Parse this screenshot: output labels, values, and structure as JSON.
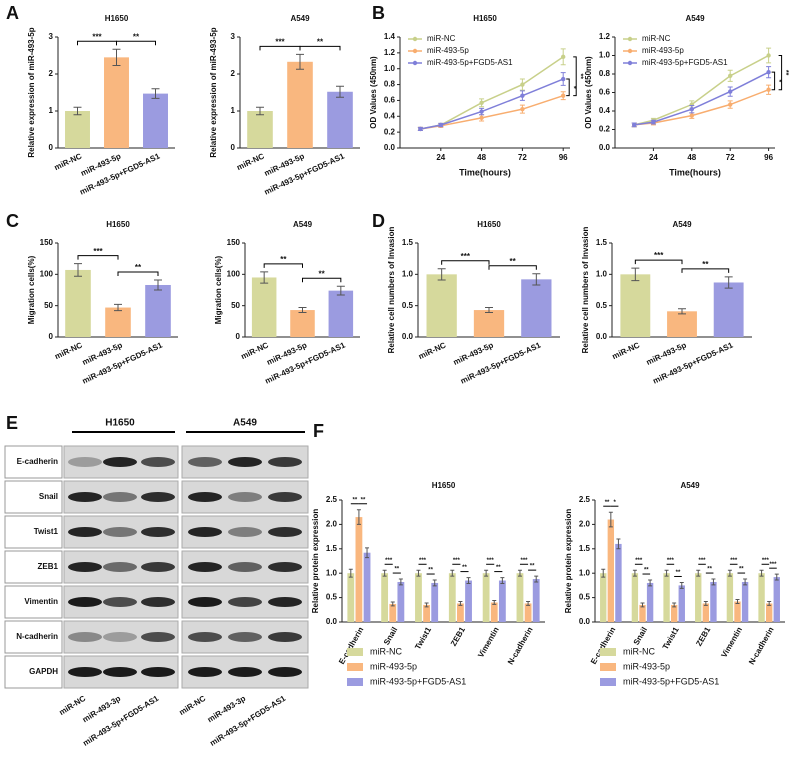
{
  "panels": [
    "A",
    "B",
    "C",
    "D",
    "E",
    "F"
  ],
  "blot": {
    "groups": [
      "H1650",
      "A549"
    ],
    "proteins": [
      "E-cadherin",
      "Snail",
      "Twist1",
      "ZEB1",
      "Vimentin",
      "N-cadherin",
      "GAPDH"
    ],
    "lanes": [
      "miR-NC",
      "miR-493-3p",
      "miR-493-5p+FGD5-AS1",
      "miR-NC",
      "miR-493-3p",
      "miR-493-5p+FGD5-AS1"
    ]
  },
  "chart_data": [
    {
      "type": "bar",
      "title": "H1650",
      "ylabel": "Relative expression of miR-493-5p",
      "categories": [
        "miR-NC",
        "miR-493-5p",
        "miR-493-5p+FGD5-AS1"
      ],
      "values": [
        1.0,
        2.45,
        1.47
      ],
      "errors": [
        0.1,
        0.22,
        0.13
      ],
      "colors": [
        "#d6d99c",
        "#f9b77f",
        "#9b9be0"
      ],
      "ylim": [
        0,
        3
      ],
      "yticks": [
        0,
        1,
        2,
        3
      ],
      "significance": [
        "***",
        "**"
      ]
    },
    {
      "type": "bar",
      "title": "A549",
      "ylabel": "Relative expression of miR-493-5p",
      "categories": [
        "miR-NC",
        "miR-493-5p",
        "miR-493-5p+FGD5-AS1"
      ],
      "values": [
        1.0,
        2.33,
        1.52
      ],
      "errors": [
        0.1,
        0.2,
        0.15
      ],
      "colors": [
        "#d6d99c",
        "#f9b77f",
        "#9b9be0"
      ],
      "ylim": [
        0,
        3
      ],
      "yticks": [
        0,
        1,
        2,
        3
      ],
      "significance": [
        "***",
        "**"
      ]
    },
    {
      "type": "line",
      "title": "H1650",
      "xlabel": "Time(hours)",
      "ylabel": "OD Values (450nm)",
      "x": [
        12,
        24,
        48,
        72,
        96
      ],
      "xlim": [
        0,
        100
      ],
      "xticks": [
        24,
        48,
        72,
        96
      ],
      "ylim": [
        0,
        1.4
      ],
      "yticks": [
        {
          "value": 0,
          "label": "0.0"
        },
        0.2,
        0.4,
        0.6,
        0.8,
        {
          "value": 1,
          "label": "1.0"
        },
        1.2,
        1.4
      ],
      "legend": "upper left",
      "significance": [
        "*",
        "**"
      ],
      "series": [
        {
          "name": "miR-NC",
          "color": "#c8d08a",
          "values": [
            0.24,
            0.29,
            0.57,
            0.8,
            1.15
          ],
          "errors": [
            0.02,
            0.02,
            0.05,
            0.07,
            0.1
          ]
        },
        {
          "name": "miR-493-5p",
          "color": "#f8ad6f",
          "values": [
            0.24,
            0.28,
            0.38,
            0.49,
            0.66
          ],
          "errors": [
            0.02,
            0.02,
            0.04,
            0.05,
            0.05
          ]
        },
        {
          "name": "miR-493-5p+FGD5-AS1",
          "color": "#7f7fd9",
          "values": [
            0.24,
            0.29,
            0.46,
            0.66,
            0.87
          ],
          "errors": [
            0.02,
            0.02,
            0.04,
            0.06,
            0.08
          ]
        }
      ]
    },
    {
      "type": "line",
      "title": "A549",
      "xlabel": "Time(hours)",
      "ylabel": "OD Values (450nm)",
      "x": [
        12,
        24,
        48,
        72,
        96
      ],
      "xlim": [
        0,
        100
      ],
      "xticks": [
        24,
        48,
        72,
        96
      ],
      "ylim": [
        0,
        1.2
      ],
      "yticks": [
        {
          "value": 0,
          "label": "0.0"
        },
        0.2,
        0.4,
        0.6,
        0.8,
        {
          "value": 1,
          "label": "1.0"
        },
        1.2
      ],
      "legend": "upper left",
      "significance": [
        "*",
        "**"
      ],
      "series": [
        {
          "name": "miR-NC",
          "color": "#c8d08a",
          "values": [
            0.25,
            0.3,
            0.47,
            0.78,
            1.0
          ],
          "errors": [
            0.02,
            0.02,
            0.04,
            0.06,
            0.08
          ]
        },
        {
          "name": "miR-493-5p",
          "color": "#f8ad6f",
          "values": [
            0.25,
            0.27,
            0.35,
            0.47,
            0.63
          ],
          "errors": [
            0.02,
            0.02,
            0.03,
            0.04,
            0.05
          ]
        },
        {
          "name": "miR-493-5p+FGD5-AS1",
          "color": "#7f7fd9",
          "values": [
            0.25,
            0.28,
            0.42,
            0.61,
            0.82
          ],
          "errors": [
            0.02,
            0.02,
            0.04,
            0.05,
            0.06
          ]
        }
      ]
    },
    {
      "type": "bar",
      "title": "H1650",
      "ylabel": "Migration cells(%)",
      "categories": [
        "miR-NC",
        "miR-493-5p",
        "miR-493-5p+FGD5-AS1"
      ],
      "values": [
        107,
        47,
        83
      ],
      "errors": [
        10,
        5,
        8
      ],
      "colors": [
        "#d6d99c",
        "#f9b77f",
        "#9b9be0"
      ],
      "ylim": [
        0,
        150
      ],
      "yticks": [
        0,
        50,
        100,
        150
      ],
      "significance": [
        "***",
        "**"
      ]
    },
    {
      "type": "bar",
      "title": "A549",
      "ylabel": "Migration cells(%)",
      "categories": [
        "miR-NC",
        "miR-493-5p",
        "miR-493-5p+FGD5-AS1"
      ],
      "values": [
        95,
        43,
        74
      ],
      "errors": [
        9,
        4,
        7
      ],
      "colors": [
        "#d6d99c",
        "#f9b77f",
        "#9b9be0"
      ],
      "ylim": [
        0,
        150
      ],
      "yticks": [
        0,
        50,
        100,
        150
      ],
      "significance": [
        "**",
        "**"
      ]
    },
    {
      "type": "bar",
      "title": "H1650",
      "ylabel": "Relative cell numbers of Invasion",
      "categories": [
        "miR-NC",
        "miR-493-5p",
        "miR-493-5p+FGD5-AS1"
      ],
      "values": [
        1.0,
        0.43,
        0.92
      ],
      "errors": [
        0.09,
        0.04,
        0.09
      ],
      "colors": [
        "#d6d99c",
        "#f9b77f",
        "#9b9be0"
      ],
      "ylim": [
        0,
        1.5
      ],
      "yticks": [
        {
          "value": 0,
          "label": "0.0"
        },
        0.5,
        {
          "value": 1,
          "label": "1.0"
        },
        1.5
      ],
      "significance": [
        "***",
        "**"
      ]
    },
    {
      "type": "bar",
      "title": "A549",
      "ylabel": "Relative cell numbers of Invasion",
      "categories": [
        "miR-NC",
        "miR-493-5p",
        "miR-493-5p+FGD5-AS1"
      ],
      "values": [
        1.0,
        0.41,
        0.87
      ],
      "errors": [
        0.1,
        0.04,
        0.09
      ],
      "colors": [
        "#d6d99c",
        "#f9b77f",
        "#9b9be0"
      ],
      "ylim": [
        0,
        1.5
      ],
      "yticks": [
        {
          "value": 0,
          "label": "0.0"
        },
        0.5,
        {
          "value": 1,
          "label": "1.0"
        },
        1.5
      ],
      "significance": [
        "***",
        "**"
      ]
    },
    {
      "type": "bar",
      "title": "H1650",
      "ylabel": "Relative protein expression",
      "categories": [
        "E-cadherin",
        "Snail",
        "Twist1",
        "ZEB1",
        "Vimentin",
        "N-cadherin"
      ],
      "ylim": [
        0,
        2.5
      ],
      "yticks": [
        {
          "value": 0,
          "label": "0.0"
        },
        0.5,
        {
          "value": 1,
          "label": "1.0"
        },
        1.5,
        {
          "value": 2,
          "label": "2.0"
        },
        2.5
      ],
      "legend": "below",
      "significance": [
        [
          "**",
          "**"
        ],
        [
          "***",
          "**"
        ],
        [
          "***",
          "**"
        ],
        [
          "***",
          "**"
        ],
        [
          "***",
          "**"
        ],
        [
          "***",
          "**"
        ]
      ],
      "series": [
        {
          "name": "miR-NC",
          "color": "#d6d99c",
          "values": [
            1.0,
            1.0,
            1.0,
            1.0,
            1.0,
            1.0
          ],
          "errors": [
            0.08,
            0.06,
            0.06,
            0.06,
            0.06,
            0.06
          ]
        },
        {
          "name": "miR-493-5p",
          "color": "#f9b77f",
          "values": [
            2.15,
            0.37,
            0.35,
            0.38,
            0.4,
            0.38
          ],
          "errors": [
            0.15,
            0.04,
            0.04,
            0.04,
            0.04,
            0.04
          ]
        },
        {
          "name": "miR-493-5p+FGD5-AS1",
          "color": "#9b9be0",
          "values": [
            1.42,
            0.82,
            0.8,
            0.85,
            0.85,
            0.88
          ],
          "errors": [
            0.1,
            0.06,
            0.06,
            0.06,
            0.06,
            0.06
          ]
        }
      ]
    },
    {
      "type": "bar",
      "title": "A549",
      "ylabel": "Relative protein expression",
      "categories": [
        "E-cadherin",
        "Snail",
        "Twist1",
        "ZEB1",
        "Vimentin",
        "N-cadherin"
      ],
      "ylim": [
        0,
        2.5
      ],
      "yticks": [
        {
          "value": 0,
          "label": "0.0"
        },
        0.5,
        {
          "value": 1,
          "label": "1.0"
        },
        1.5,
        {
          "value": 2,
          "label": "2.0"
        },
        2.5
      ],
      "legend": "below",
      "significance": [
        [
          "**",
          "*"
        ],
        [
          "***",
          "**"
        ],
        [
          "***",
          "**"
        ],
        [
          "***",
          "**"
        ],
        [
          "***",
          "**"
        ],
        [
          "***",
          "***"
        ]
      ],
      "series": [
        {
          "name": "miR-NC",
          "color": "#d6d99c",
          "values": [
            1.0,
            1.0,
            1.0,
            1.0,
            1.0,
            1.0
          ],
          "errors": [
            0.08,
            0.06,
            0.06,
            0.06,
            0.06,
            0.06
          ]
        },
        {
          "name": "miR-493-5p",
          "color": "#f9b77f",
          "values": [
            2.1,
            0.35,
            0.35,
            0.38,
            0.42,
            0.38
          ],
          "errors": [
            0.15,
            0.04,
            0.04,
            0.04,
            0.04,
            0.04
          ]
        },
        {
          "name": "miR-493-5p+FGD5-AS1",
          "color": "#9b9be0",
          "values": [
            1.6,
            0.8,
            0.75,
            0.82,
            0.82,
            0.92
          ],
          "errors": [
            0.1,
            0.06,
            0.06,
            0.06,
            0.06,
            0.06
          ]
        }
      ]
    }
  ]
}
